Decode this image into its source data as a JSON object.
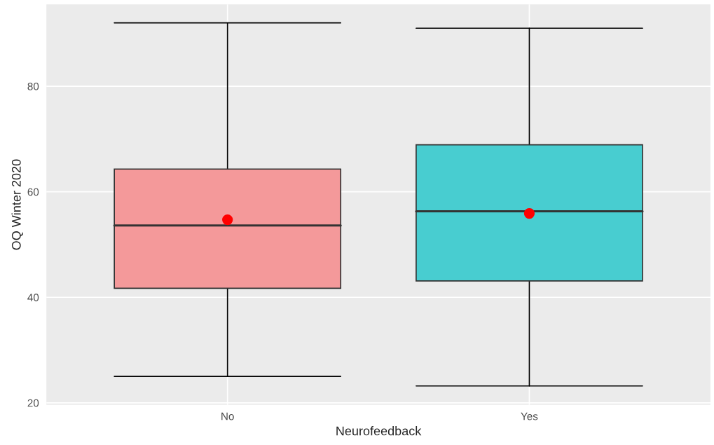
{
  "chart_data": {
    "type": "box",
    "xlabel": "Neurofeedback",
    "ylabel": "OQ Winter 2020",
    "categories": [
      "No",
      "Yes"
    ],
    "boxes": [
      {
        "low": 25,
        "q1": 41.7,
        "median": 53.6,
        "q3": 64.3,
        "high": 92,
        "mean": 54.7
      },
      {
        "low": 23.2,
        "q1": 43.1,
        "median": 56.3,
        "q3": 68.9,
        "high": 91,
        "mean": 55.9
      }
    ],
    "colors": [
      "#f4999a",
      "#48cdd0"
    ],
    "ylim": [
      19.6,
      95.5
    ],
    "yticks": [
      20,
      40,
      60,
      80
    ],
    "grid": true
  }
}
